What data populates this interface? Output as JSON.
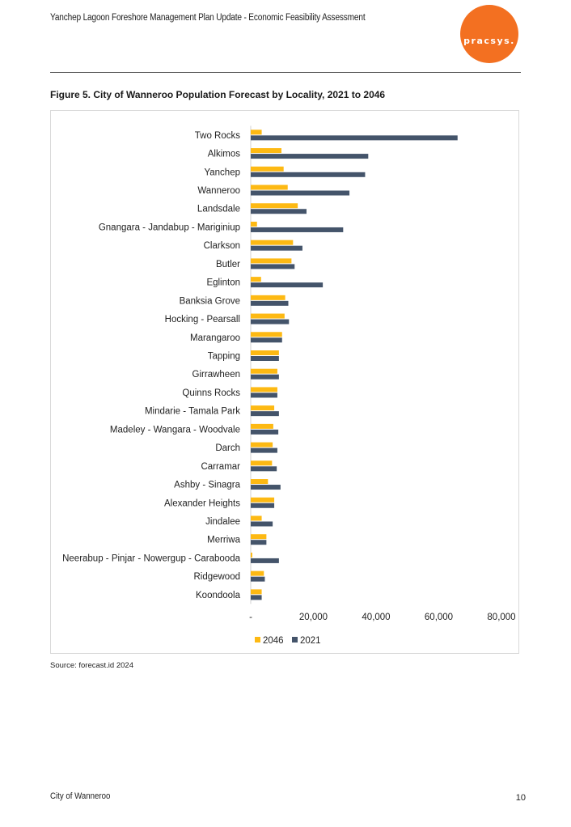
{
  "header": {
    "title": "Yanchep Lagoon Foreshore Management Plan Update - Economic Feasibility Assessment",
    "logo_text": "pracsys."
  },
  "figure_title": "Figure 5. City of Wanneroo Population Forecast by Locality, 2021 to 2046",
  "source": "Source: forecast.id 2024",
  "footer": {
    "left": "City of Wanneroo",
    "page": "10"
  },
  "colors": {
    "series_2046": "#FDB913",
    "series_2021": "#44546A",
    "brand": "#F37021"
  },
  "chart_data": {
    "type": "bar",
    "orientation": "horizontal",
    "title": "",
    "xlabel": "",
    "ylabel": "",
    "xlim": [
      0,
      80000
    ],
    "x_ticks": [
      0,
      20000,
      40000,
      60000,
      80000
    ],
    "x_tick_labels": [
      "-",
      "20,000",
      "40,000",
      "60,000",
      "80,000"
    ],
    "grid": false,
    "legend_position": "bottom",
    "categories": [
      "Two Rocks",
      "Alkimos",
      "Yanchep",
      "Wanneroo",
      "Landsdale",
      "Gnangara - Jandabup - Mariginiup",
      "Clarkson",
      "Butler",
      "Eglinton",
      "Banksia Grove",
      "Hocking - Pearsall",
      "Marangaroo",
      "Tapping",
      "Girrawheen",
      "Quinns Rocks",
      "Mindarie - Tamala Park",
      "Madeley - Wangara - Woodvale",
      "Darch",
      "Carramar",
      "Ashby - Sinagra",
      "Alexander Heights",
      "Jindalee",
      "Merriwa",
      "Neerabup - Pinjar - Nowergup - Carabooda",
      "Ridgewood",
      "Koondoola"
    ],
    "series": [
      {
        "name": "2046",
        "values": [
          3500,
          9800,
          10500,
          11800,
          15000,
          2000,
          13500,
          13000,
          3300,
          11000,
          10800,
          10000,
          9000,
          8500,
          8500,
          7500,
          7200,
          7000,
          6800,
          5500,
          7500,
          3500,
          5000,
          500,
          4200,
          3500
        ]
      },
      {
        "name": "2021",
        "values": [
          66000,
          37500,
          36500,
          31500,
          17800,
          29500,
          16500,
          14000,
          23000,
          12000,
          12200,
          10000,
          9000,
          9000,
          8500,
          9000,
          8800,
          8500,
          8300,
          9500,
          7500,
          7000,
          5000,
          9000,
          4500,
          3500
        ]
      }
    ]
  }
}
